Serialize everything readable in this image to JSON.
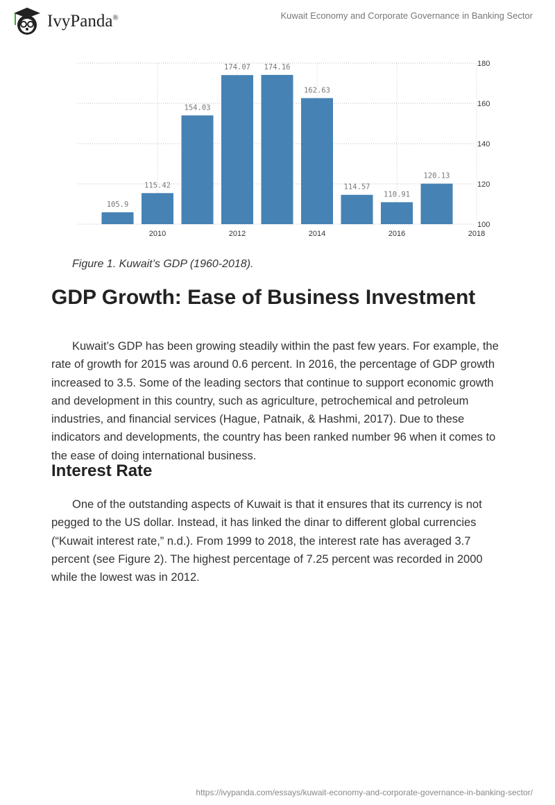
{
  "header": {
    "brand": "IvyPanda",
    "registered": "®",
    "title": "Kuwait Economy and Corporate Governance in Banking Sector"
  },
  "chart_data": {
    "type": "bar",
    "title": "",
    "x": [
      2009,
      2010,
      2011,
      2012,
      2013,
      2014,
      2015,
      2016,
      2017
    ],
    "values": [
      105.9,
      115.42,
      154.03,
      174.07,
      174.16,
      162.63,
      114.57,
      110.91,
      120.13
    ],
    "data_labels": [
      "105.9",
      "115.42",
      "154.03",
      "174.07",
      "174.16",
      "162.63",
      "114.57",
      "110.91",
      "120.13"
    ],
    "x_ticks": [
      "2010",
      "2012",
      "2014",
      "2016",
      "2018"
    ],
    "y_ticks": [
      "100",
      "120",
      "140",
      "160",
      "180"
    ],
    "ylim": [
      100,
      180
    ],
    "xlim": [
      2008.5,
      2018
    ],
    "xlabel": "",
    "ylabel": "",
    "grid": true,
    "bar_color": "#4682b4"
  },
  "caption": "Figure 1. Kuwait’s GDP (1960-2018).",
  "section1": {
    "heading": "GDP Growth: Ease of Business Investment",
    "text": "Kuwait’s GDP has been growing steadily within the past few years. For example, the rate of growth for 2015 was around 0.6 percent. In 2016, the percentage of GDP growth increased to 3.5. Some of the leading sectors that continue to support economic growth and development in this country, such as agriculture, petrochemical and petroleum industries, and financial services (Hague, Patnaik, & Hashmi, 2017). Due to these indicators and developments, the country has been ranked number 96 when it comes to the ease of doing international business."
  },
  "section2": {
    "heading": "Interest Rate",
    "text": "One of the outstanding aspects of Kuwait is that it ensures that its currency is not pegged to the US dollar. Instead, it has linked the dinar to different global currencies (“Kuwait interest rate,” n.d.). From 1999 to 2018, the interest rate has averaged 3.7 percent (see Figure 2). The highest percentage of 7.25 percent was recorded in 2000 while the lowest was in 2012."
  },
  "footer": {
    "url": "https://ivypanda.com/essays/kuwait-economy-and-corporate-governance-in-banking-sector/"
  }
}
